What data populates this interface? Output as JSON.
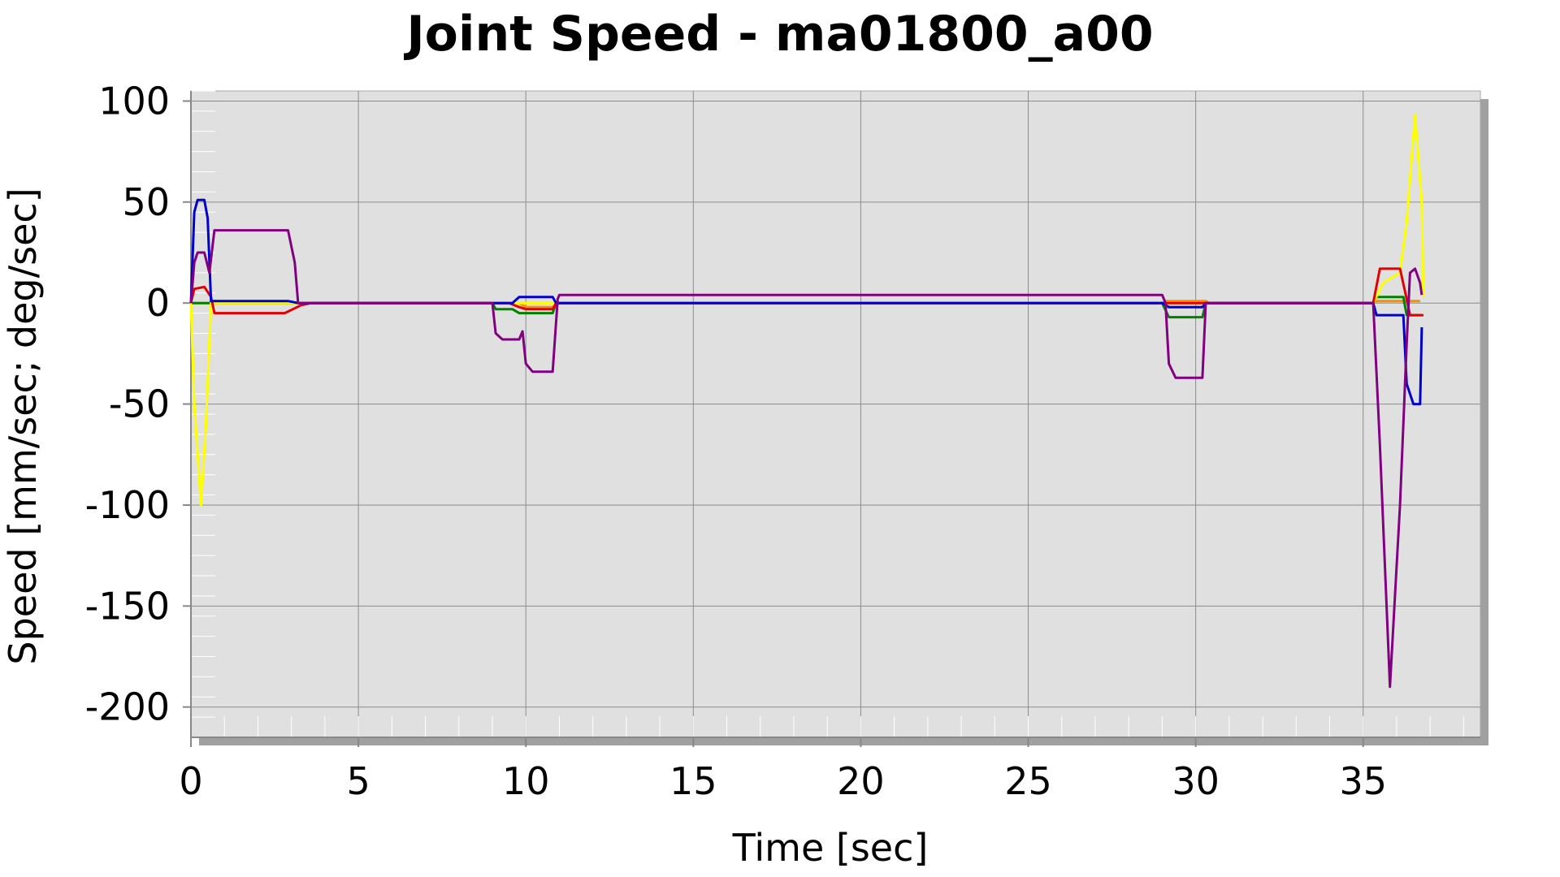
{
  "chart_data": {
    "type": "line",
    "title": "Joint Speed - ma01800_a00",
    "xlabel": "Time [sec]",
    "ylabel": "Speed [mm/sec; deg/sec]",
    "xlim": [
      0,
      38.5
    ],
    "ylim": [
      -215,
      105
    ],
    "x_ticks": [
      0,
      5,
      10,
      15,
      20,
      25,
      30,
      35
    ],
    "y_ticks": [
      100,
      50,
      0,
      -50,
      -100,
      -150,
      -200
    ],
    "grid": true,
    "legend": "none",
    "colors": {
      "plot_background": "#e0e0e0",
      "shadow": "#a0a0a0",
      "grid": "#8c8c8c",
      "frame": "#a8a8a8"
    },
    "series": [
      {
        "color": "#ff8c00",
        "points": [
          [
            0,
            0
          ],
          [
            9.0,
            0
          ],
          [
            9.8,
            0
          ],
          [
            10.0,
            -2
          ],
          [
            10.8,
            -2
          ],
          [
            11.0,
            0
          ],
          [
            29.0,
            0
          ],
          [
            29.1,
            1
          ],
          [
            30.3,
            1
          ],
          [
            30.4,
            0
          ],
          [
            35.3,
            0
          ],
          [
            35.4,
            1
          ],
          [
            36.7,
            1
          ]
        ]
      },
      {
        "color": "#008000",
        "points": [
          [
            0,
            0
          ],
          [
            9.0,
            0
          ],
          [
            9.1,
            -3
          ],
          [
            9.6,
            -3
          ],
          [
            9.8,
            -5
          ],
          [
            10.8,
            -5
          ],
          [
            10.9,
            0
          ],
          [
            29.0,
            0
          ],
          [
            29.2,
            -7
          ],
          [
            30.2,
            -7
          ],
          [
            30.3,
            0
          ],
          [
            35.3,
            0
          ],
          [
            35.4,
            3
          ],
          [
            36.2,
            3
          ],
          [
            36.3,
            -6
          ],
          [
            36.7,
            -6
          ]
        ]
      },
      {
        "color": "#ffff00",
        "points": [
          [
            0,
            0
          ],
          [
            0.1,
            -50
          ],
          [
            0.3,
            -100
          ],
          [
            0.45,
            -60
          ],
          [
            0.6,
            0
          ],
          [
            35.3,
            0
          ],
          [
            35.6,
            10
          ],
          [
            36.1,
            15
          ],
          [
            36.3,
            40
          ],
          [
            36.55,
            93
          ],
          [
            36.75,
            50
          ],
          [
            36.8,
            3
          ]
        ]
      },
      {
        "color": "#e00000",
        "points": [
          [
            0,
            0
          ],
          [
            0.1,
            7
          ],
          [
            0.4,
            8
          ],
          [
            0.6,
            3
          ],
          [
            0.7,
            -5
          ],
          [
            2.8,
            -5
          ],
          [
            3.3,
            -1
          ],
          [
            3.6,
            0
          ],
          [
            9.5,
            0
          ],
          [
            9.8,
            -2
          ],
          [
            10.0,
            -3
          ],
          [
            10.8,
            -3
          ],
          [
            10.9,
            0
          ],
          [
            35.3,
            0
          ],
          [
            35.5,
            17
          ],
          [
            36.1,
            17
          ],
          [
            36.3,
            2
          ],
          [
            36.4,
            -6
          ],
          [
            36.8,
            -6
          ]
        ]
      },
      {
        "color": "#0000cc",
        "points": [
          [
            0,
            0
          ],
          [
            0.1,
            45
          ],
          [
            0.2,
            51
          ],
          [
            0.4,
            51
          ],
          [
            0.5,
            42
          ],
          [
            0.6,
            1
          ],
          [
            2.9,
            1
          ],
          [
            3.2,
            0
          ],
          [
            9.6,
            0
          ],
          [
            9.8,
            3
          ],
          [
            10.8,
            3
          ],
          [
            10.9,
            0
          ],
          [
            29.0,
            0
          ],
          [
            29.2,
            -2
          ],
          [
            30.2,
            -2
          ],
          [
            30.3,
            0
          ],
          [
            35.3,
            0
          ],
          [
            35.4,
            -6
          ],
          [
            36.2,
            -6
          ],
          [
            36.3,
            -40
          ],
          [
            36.5,
            -50
          ],
          [
            36.7,
            -50
          ],
          [
            36.75,
            -12
          ]
        ]
      },
      {
        "color": "#800080",
        "points": [
          [
            0,
            0
          ],
          [
            0.1,
            20
          ],
          [
            0.2,
            25
          ],
          [
            0.4,
            25
          ],
          [
            0.55,
            15
          ],
          [
            0.7,
            36
          ],
          [
            2.9,
            36
          ],
          [
            3.1,
            20
          ],
          [
            3.2,
            0
          ],
          [
            9.0,
            0
          ],
          [
            9.1,
            -15
          ],
          [
            9.3,
            -18
          ],
          [
            9.8,
            -18
          ],
          [
            9.9,
            -14
          ],
          [
            10.0,
            -30
          ],
          [
            10.2,
            -34
          ],
          [
            10.8,
            -34
          ],
          [
            10.95,
            2
          ],
          [
            11.0,
            4
          ],
          [
            29.0,
            4
          ],
          [
            29.1,
            0
          ],
          [
            29.2,
            -30
          ],
          [
            29.4,
            -37
          ],
          [
            30.2,
            -37
          ],
          [
            30.3,
            0
          ],
          [
            35.3,
            0
          ],
          [
            35.5,
            -70
          ],
          [
            35.8,
            -190
          ],
          [
            36.1,
            -100
          ],
          [
            36.3,
            -20
          ],
          [
            36.4,
            15
          ],
          [
            36.55,
            17
          ],
          [
            36.7,
            10
          ],
          [
            36.75,
            4
          ]
        ]
      }
    ]
  }
}
